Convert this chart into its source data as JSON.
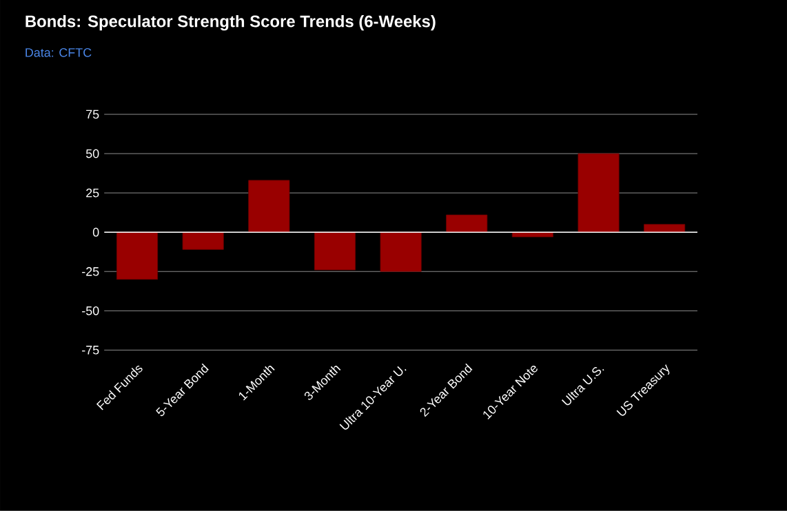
{
  "chart_data": {
    "type": "bar",
    "title": "Bonds: Speculator Strength Score Trends (6-Weeks)",
    "annotations": [
      "Data: CFTC"
    ],
    "categories": [
      "Fed Funds",
      "5-Year Bond",
      "1-Month",
      "3-Month",
      "Ultra 10-Year U.",
      "2-Year Bond",
      "10-Year Note",
      "Ultra U.S.",
      "US Treasury"
    ],
    "values": [
      -30,
      -11,
      33,
      -24,
      -25,
      11,
      -3,
      50,
      5
    ],
    "color": "#990000",
    "ylim": [
      -75,
      75
    ],
    "yticks": [
      -75,
      -50,
      -25,
      0,
      25,
      50,
      75
    ],
    "grid": "y"
  }
}
